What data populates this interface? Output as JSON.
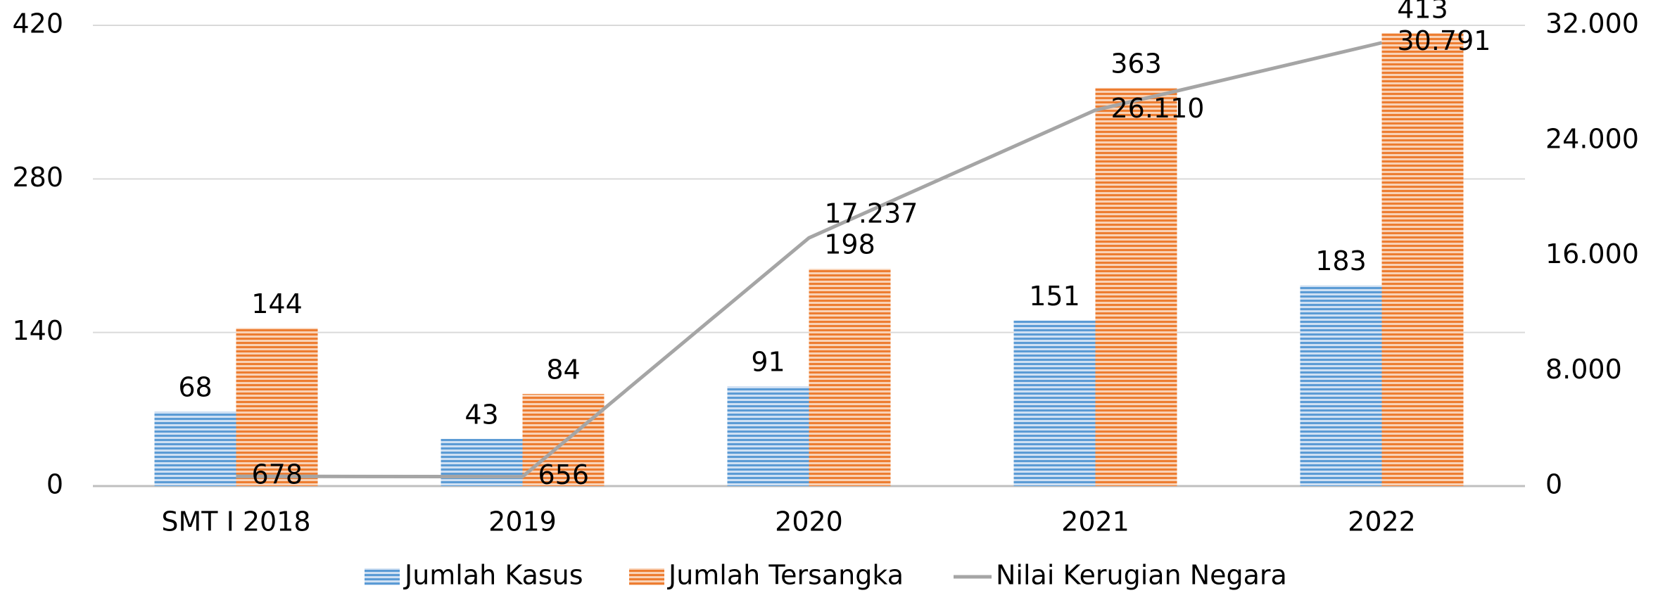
{
  "chart_data": {
    "type": "bar",
    "categories": [
      "SMT I 2018",
      "2019",
      "2020",
      "2021",
      "2022"
    ],
    "series": [
      {
        "name": "Jumlah Kasus",
        "color": "#5b9bd5",
        "values": [
          68,
          43,
          91,
          151,
          183
        ]
      },
      {
        "name": "Jumlah Tersangka",
        "color": "#ed7d31",
        "values": [
          144,
          84,
          198,
          363,
          413
        ]
      },
      {
        "name": "Nilai Kerugian Negara",
        "color": "#a5a5a5",
        "type": "line",
        "axis": "y2",
        "values": [
          678,
          656,
          17237,
          26110,
          30791
        ],
        "value_labels": [
          "678",
          "656",
          "17.237",
          "26.110",
          "30.791"
        ]
      }
    ],
    "ylim": [
      0,
      420
    ],
    "yticks": [
      0,
      140,
      280,
      420
    ],
    "y2lim": [
      0,
      32000
    ],
    "y2ticks": [
      0,
      {
        "value": 8000,
        "label": "8.000"
      },
      {
        "value": 16000,
        "label": "16.000"
      },
      {
        "value": 24000,
        "label": "24.000"
      },
      {
        "value": 32000,
        "label": "32.000"
      }
    ],
    "grid": true,
    "legend": "bottom"
  }
}
